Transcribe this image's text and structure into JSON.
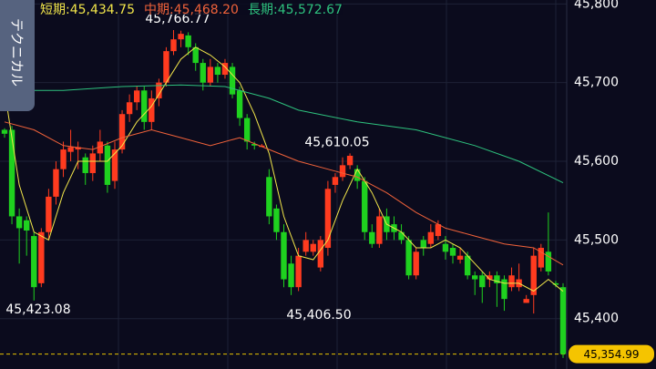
{
  "chart_data": {
    "type": "candlestick",
    "side_tab": "テクニカル",
    "up_color": "#ff3b1f",
    "down_color": "#1fd11f",
    "ylim": [
      45336,
      45805
    ],
    "yticks": [
      {
        "value": 45800,
        "label": "45,800"
      },
      {
        "value": 45700,
        "label": "45,700"
      },
      {
        "value": 45600,
        "label": "45,600"
      },
      {
        "value": 45500,
        "label": "45,500"
      },
      {
        "value": 45400,
        "label": "45,400"
      }
    ],
    "grid": true,
    "candles": {
      "open": [
        45640,
        45640,
        45530,
        45525,
        45505,
        45445,
        45510,
        45555,
        45590,
        45612,
        45615,
        45605,
        45585,
        45610,
        45620,
        45575,
        45615,
        45660,
        45675,
        45690,
        45650,
        45680,
        45700,
        45740,
        45755,
        45760,
        45745,
        45725,
        45700,
        45720,
        45710,
        45720,
        45690,
        45655,
        45622,
        45620,
        45580,
        45540,
        45510,
        45470,
        45440,
        45485,
        45485,
        45465,
        45490,
        45570,
        45580,
        45595,
        45590,
        45575,
        45510,
        45495,
        45530,
        45520,
        45510,
        45500,
        45455,
        45500,
        45495,
        45505,
        45495,
        45490,
        45475,
        45480,
        45455,
        45455,
        45450,
        45455,
        45450,
        45440,
        45440,
        45420,
        45430,
        45465,
        45485,
        45445,
        45440
      ],
      "high": [
        45642,
        45645,
        45540,
        45530,
        45510,
        45515,
        45565,
        45600,
        45625,
        45640,
        45625,
        45610,
        45620,
        45640,
        45625,
        45625,
        45665,
        45685,
        45695,
        45695,
        45690,
        45705,
        45745,
        45766.77,
        45766,
        45764,
        45750,
        45730,
        45730,
        45725,
        45730,
        45725,
        45695,
        45660,
        45625,
        45622,
        45590,
        45545,
        45520,
        45480,
        45490,
        45510,
        45500,
        45505,
        45575,
        45585,
        45605,
        45610.05,
        45595,
        45580,
        45520,
        45540,
        45540,
        45530,
        45520,
        45505,
        45490,
        45505,
        45520,
        45525,
        45505,
        45495,
        45490,
        45485,
        45460,
        45460,
        45460,
        45460,
        45455,
        45465,
        45470,
        45430,
        45490,
        45495,
        45535,
        45448,
        45445
      ],
      "low": [
        45630,
        45520,
        45470,
        45480,
        45423.08,
        45440,
        45500,
        45545,
        45580,
        45600,
        45590,
        45570,
        45575,
        45600,
        45560,
        45565,
        45610,
        45650,
        45665,
        45640,
        45640,
        45670,
        45695,
        45735,
        45745,
        45735,
        45715,
        45690,
        45695,
        45700,
        45705,
        45680,
        45645,
        45615,
        45615,
        45618,
        45520,
        45500,
        45440,
        45430,
        45435,
        45480,
        45480,
        45460,
        45480,
        45560,
        45575,
        45590,
        45565,
        45500,
        45490,
        45490,
        45500,
        45500,
        45495,
        45450,
        45450,
        45480,
        45490,
        45500,
        45475,
        45470,
        45470,
        45450,
        45430,
        45420,
        45440,
        45415,
        45410,
        45435,
        45435,
        45420,
        45406.5,
        45460,
        45455,
        45440,
        45350
      ],
      "close": [
        45635,
        45530,
        45515,
        45512,
        45440,
        45510,
        45555,
        45590,
        45615,
        45618,
        45618,
        45585,
        45610,
        45625,
        45570,
        45615,
        45660,
        45675,
        45690,
        45650,
        45680,
        45700,
        45740,
        45755,
        45762,
        45745,
        45725,
        45700,
        45720,
        45710,
        45725,
        45685,
        45655,
        45625,
        45620,
        45620,
        45530,
        45510,
        45450,
        45440,
        45480,
        45500,
        45495,
        45500,
        45565,
        45580,
        45595,
        45607,
        45575,
        45510,
        45495,
        45530,
        45510,
        45510,
        45500,
        45455,
        45485,
        45490,
        45510,
        45520,
        45485,
        45480,
        45480,
        45455,
        45450,
        45440,
        45455,
        45445,
        45425,
        45455,
        45450,
        45425,
        45480,
        45490,
        45460,
        45443,
        45354.99
      ]
    },
    "series": [
      {
        "name": "短期:",
        "color": "#f2e64a",
        "last": {
          "value": 45434.75,
          "label": "45,434.75"
        },
        "x": [
          0,
          2,
          4,
          6,
          8,
          10,
          12,
          14,
          16,
          18,
          20,
          22,
          24,
          26,
          28,
          30,
          32,
          34,
          36,
          38,
          40,
          42,
          44,
          46,
          48,
          50,
          52,
          54,
          56,
          58,
          60,
          62,
          64,
          66,
          68,
          70,
          72,
          74,
          76
        ],
        "values": [
          45690,
          45570,
          45510,
          45500,
          45560,
          45600,
          45600,
          45600,
          45620,
          45650,
          45670,
          45700,
          45730,
          45745,
          45735,
          45720,
          45700,
          45660,
          45610,
          45530,
          45480,
          45475,
          45500,
          45550,
          45590,
          45560,
          45520,
          45510,
          45490,
          45490,
          45500,
          45490,
          45470,
          45450,
          45445,
          45445,
          45435,
          45450,
          45434.75
        ]
      },
      {
        "name": "中期:",
        "color": "#f0623a",
        "last": {
          "value": 45468.2,
          "label": "45,468.20"
        },
        "x": [
          0,
          4,
          8,
          12,
          16,
          20,
          24,
          28,
          32,
          36,
          40,
          44,
          48,
          52,
          56,
          60,
          64,
          68,
          72,
          76
        ],
        "values": [
          45650,
          45640,
          45620,
          45615,
          45630,
          45640,
          45630,
          45620,
          45630,
          45615,
          45600,
          45590,
          45580,
          45560,
          45535,
          45515,
          45505,
          45495,
          45490,
          45468.2
        ]
      },
      {
        "name": "長期:",
        "color": "#2ec27e",
        "last": {
          "value": 45572.67,
          "label": "45,572.67"
        },
        "x": [
          0,
          8,
          16,
          24,
          30,
          36,
          40,
          48,
          56,
          64,
          70,
          76
        ],
        "values": [
          45690,
          45690,
          45695,
          45697,
          45695,
          45680,
          45665,
          45650,
          45640,
          45620,
          45600,
          45572.67
        ]
      }
    ],
    "annotations": [
      {
        "value": 45766.77,
        "label": "45,766.77"
      },
      {
        "value": 45423.08,
        "label": "45,423.08"
      },
      {
        "value": 45610.05,
        "label": "45,610.05"
      },
      {
        "value": 45406.5,
        "label": "45,406.50"
      }
    ],
    "current_price": {
      "value": 45354.99,
      "label": "45,354.99"
    }
  }
}
